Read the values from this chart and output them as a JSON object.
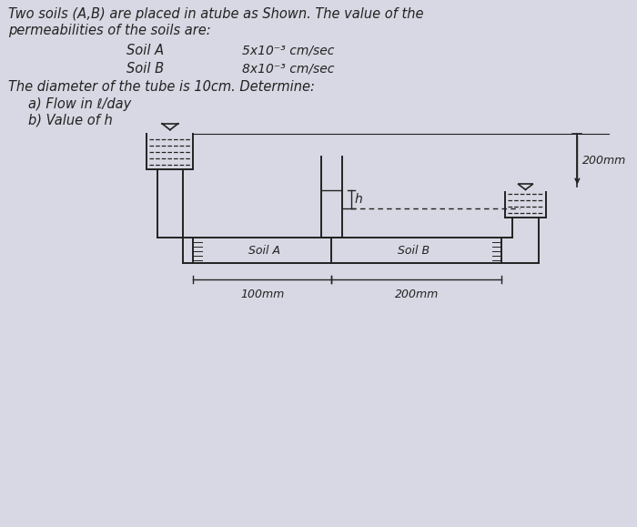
{
  "bg_color": "#d8d8e4",
  "line_color": "#222222",
  "title_line1": "Two soils (A,B) are placed in atube as Shown. The value of the",
  "title_line2": "permeabilities of the soils are:",
  "soil_a_label": "Soil A",
  "soil_a_value": "5x10⁻³ cm/sec",
  "soil_b_label": "Soil B",
  "soil_b_value": "8x10⁻³ cm/sec",
  "diameter_text": "The diameter of the tube is 10cm. Determine:",
  "part_a": "a) Flow in ℓ/day",
  "part_b": "b) Value of h",
  "dim_100mm": "100mm",
  "dim_200mm": "200mm",
  "dim_200mm_vert": "200mm",
  "label_soil_a": "Soil A",
  "label_soil_b": "Soil B",
  "label_h": "h"
}
